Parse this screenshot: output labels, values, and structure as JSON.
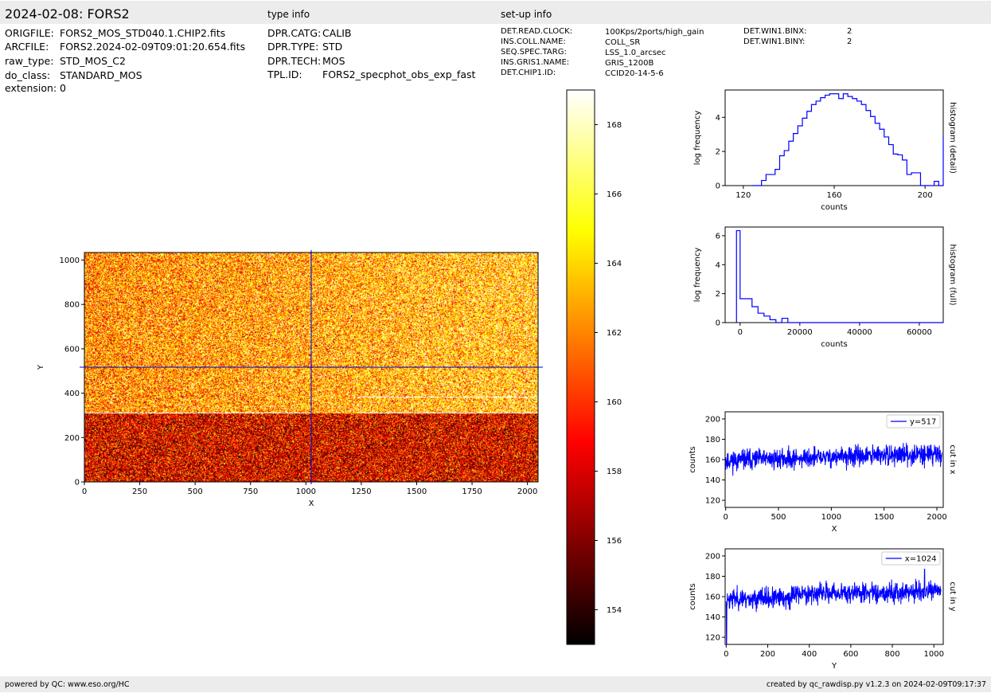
{
  "header": {
    "title": "2024-02-08: FORS2",
    "type_info_title": "type info",
    "setup_info_title": "set-up info"
  },
  "file_info": [
    {
      "key": "ORIGFILE:",
      "value": "FORS2_MOS_STD040.1.CHIP2.fits"
    },
    {
      "key": "ARCFILE:",
      "value": "FORS2.2024-02-09T09:01:20.654.fits"
    },
    {
      "key": "raw_type:",
      "value": "STD_MOS_C2"
    },
    {
      "key": "do_class:",
      "value": "STANDARD_MOS"
    },
    {
      "key": "extension:",
      "value": "0"
    }
  ],
  "type_info": [
    {
      "key": "DPR.CATG:",
      "value": "CALIB"
    },
    {
      "key": "DPR.TYPE:",
      "value": "STD"
    },
    {
      "key": "DPR.TECH:",
      "value": "MOS"
    },
    {
      "key": "TPL.ID:",
      "value": "FORS2_specphot_obs_exp_fast"
    }
  ],
  "setup_info": [
    {
      "key": "DET.READ.CLOCK:",
      "value": "100Kps/2ports/high_gain"
    },
    {
      "key": "INS.COLL.NAME:",
      "value": "COLL_SR"
    },
    {
      "key": "SEQ.SPEC.TARG:",
      "value": "LSS_1.0_arcsec"
    },
    {
      "key": "INS.GRIS1.NAME:",
      "value": "GRIS_1200B"
    },
    {
      "key": "DET.CHIP1.ID:",
      "value": "CCID20-14-5-6"
    }
  ],
  "setup_info2": [
    {
      "key": "DET.WIN1.BINX:",
      "value": "2"
    },
    {
      "key": "DET.WIN1.BINY:",
      "value": "2"
    }
  ],
  "footer": {
    "left": "powered by QC: www.eso.org/HC",
    "right": "created by qc_rawdisp.py v1.2.3 on 2024-02-09T09:17:37"
  },
  "colors": {
    "curve": "#0000ff",
    "band": "#ececec"
  },
  "chart_data": [
    {
      "type": "heatmap",
      "colormap": "hot",
      "xlabel": "X",
      "ylabel": "Y",
      "xlim": [
        0,
        2048
      ],
      "ylim": [
        0,
        1034
      ],
      "xticks": [
        0,
        250,
        500,
        750,
        1000,
        1250,
        1500,
        1750,
        2000
      ],
      "yticks": [
        0,
        200,
        400,
        600,
        800,
        1000
      ],
      "crosshair": {
        "x": 1024,
        "y": 517
      },
      "regions": [
        {
          "y_range": [
            0,
            310
          ],
          "mean": 158.5
        },
        {
          "y_range": [
            310,
            1034
          ],
          "mean": 162.5,
          "x_gradient": 1.8
        }
      ],
      "bright_rows": [
        310,
        380
      ],
      "colorbar": {
        "range": [
          153,
          169
        ],
        "ticks": [
          154,
          156,
          158,
          160,
          162,
          164,
          166,
          168
        ]
      }
    },
    {
      "type": "line",
      "style": "steps",
      "title": "histogram (detail)",
      "xlabel": "counts",
      "ylabel": "log frequency",
      "xlim": [
        112,
        208
      ],
      "ylim": [
        0,
        5.6
      ],
      "xticks": [
        120,
        160,
        200
      ],
      "yticks": [
        0,
        2,
        4
      ],
      "x": [
        124,
        126,
        128,
        130,
        132,
        134,
        136,
        138,
        140,
        142,
        144,
        146,
        148,
        150,
        152,
        154,
        156,
        158,
        160,
        162,
        164,
        166,
        168,
        170,
        172,
        174,
        176,
        178,
        180,
        182,
        184,
        186,
        188,
        190,
        192,
        194,
        196,
        198,
        200,
        202,
        204,
        206,
        208
      ],
      "values": [
        0,
        0,
        0.3,
        0.65,
        0.65,
        0.95,
        1.75,
        2.05,
        2.6,
        3.05,
        3.5,
        3.95,
        4.35,
        4.75,
        4.95,
        5.15,
        5.3,
        5.38,
        5.38,
        5.1,
        5.38,
        5.22,
        5.1,
        4.95,
        4.75,
        4.4,
        4.05,
        3.65,
        3.3,
        2.85,
        2.4,
        1.85,
        1.8,
        1.5,
        0.65,
        0.75,
        0.75,
        0,
        0,
        0,
        0.25,
        0,
        2.85
      ]
    },
    {
      "type": "line",
      "style": "steps",
      "title": "histogram (full)",
      "xlabel": "counts",
      "ylabel": "log frequency",
      "xlim": [
        -5000,
        68000
      ],
      "ylim": [
        0,
        6.6
      ],
      "xticks": [
        0,
        20000,
        40000,
        60000
      ],
      "yticks": [
        0,
        2,
        4,
        6
      ],
      "x": [
        -1200,
        0,
        2000,
        4000,
        6000,
        8000,
        10000,
        12000,
        14000,
        16000,
        18000,
        68000
      ],
      "values": [
        6.35,
        1.65,
        1.65,
        1.1,
        0.65,
        0.45,
        0.2,
        0,
        0.3,
        0,
        0,
        0
      ]
    },
    {
      "type": "line",
      "title": "cut in x",
      "legend": "y=517",
      "legend_position": "top-right",
      "xlabel": "X",
      "ylabel": "counts",
      "xlim": [
        -5,
        2060
      ],
      "ylim": [
        113,
        207
      ],
      "xticks": [
        0,
        500,
        1000,
        1500,
        2000
      ],
      "yticks": [
        120,
        140,
        160,
        180,
        200
      ],
      "baseline": [
        [
          0,
          159
        ],
        [
          2048,
          166
        ]
      ],
      "noise": 5
    },
    {
      "type": "line",
      "title": "cut in y",
      "legend": "x=1024",
      "legend_position": "top-right",
      "xlabel": "Y",
      "ylabel": "counts",
      "xlim": [
        -5,
        1045
      ],
      "ylim": [
        113,
        207
      ],
      "xticks": [
        0,
        200,
        400,
        600,
        800,
        1000
      ],
      "yticks": [
        120,
        140,
        160,
        180,
        200
      ],
      "baseline": [
        [
          0,
          158
        ],
        [
          310,
          158
        ],
        [
          320,
          163
        ],
        [
          1034,
          165
        ]
      ],
      "noise": 5,
      "features": [
        {
          "x": 2,
          "value": 113
        },
        {
          "x": 955,
          "value": 187
        }
      ]
    }
  ]
}
